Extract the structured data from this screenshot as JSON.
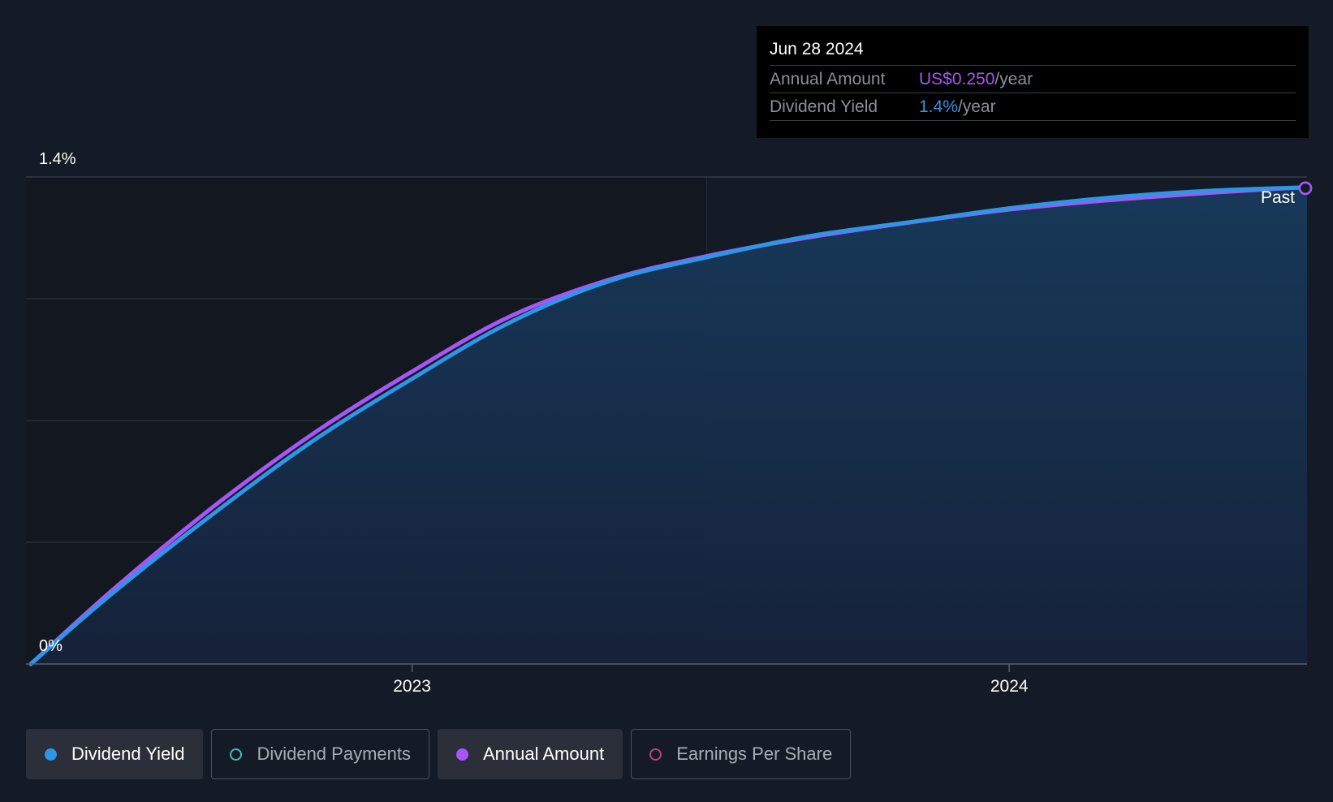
{
  "colors": {
    "background": "#151b26",
    "past_region": "#13171f",
    "area_fill_top": "#173a5c",
    "area_fill_bottom": "#15223a",
    "dividend_yield": "#2f95e6",
    "annual_amount": "#a855f7",
    "dividend_payments": "#3dbfb0",
    "earnings_per_share": "#c0417a",
    "gridline": "#2b313b",
    "axis_text": "#ffffff"
  },
  "tooltip": {
    "date": "Jun 28 2024",
    "annual_amount_label": "Annual Amount",
    "annual_amount_value": "US$0.250",
    "annual_amount_unit": "/year",
    "dividend_yield_label": "Dividend Yield",
    "dividend_yield_value": "1.4%",
    "dividend_yield_unit": "/year"
  },
  "past_label": "Past",
  "legend": {
    "items": [
      {
        "label": "Dividend Yield",
        "active": true,
        "dot_style": "filled",
        "color": "#2f95e6"
      },
      {
        "label": "Dividend Payments",
        "active": false,
        "dot_style": "outline",
        "color": "#3dbfb0"
      },
      {
        "label": "Annual Amount",
        "active": true,
        "dot_style": "filled",
        "color": "#a855f7"
      },
      {
        "label": "Earnings Per Share",
        "active": false,
        "dot_style": "outline",
        "color": "#c0417a"
      }
    ]
  },
  "chart_data": {
    "type": "area",
    "title": "",
    "xlabel": "",
    "ylabel": "",
    "x_tick_labels": [
      "2023",
      "2024"
    ],
    "y_tick_labels": [
      "0%",
      "1.4%"
    ],
    "ylim": [
      0,
      1.4
    ],
    "xlim": [
      "2022-05-10",
      "2024-07-01"
    ],
    "past_region_end": "2023-06-30",
    "grid": true,
    "series": [
      {
        "name": "Dividend Yield",
        "unit": "%",
        "points": [
          {
            "x": "2022-05-13",
            "y": 0.0
          },
          {
            "x": "2022-07-01",
            "y": 0.2
          },
          {
            "x": "2022-09-01",
            "y": 0.43
          },
          {
            "x": "2022-11-01",
            "y": 0.64
          },
          {
            "x": "2023-01-01",
            "y": 0.82
          },
          {
            "x": "2023-03-01",
            "y": 0.98
          },
          {
            "x": "2023-05-01",
            "y": 1.1
          },
          {
            "x": "2023-07-01",
            "y": 1.17
          },
          {
            "x": "2023-09-01",
            "y": 1.23
          },
          {
            "x": "2023-11-01",
            "y": 1.27
          },
          {
            "x": "2024-01-01",
            "y": 1.31
          },
          {
            "x": "2024-03-01",
            "y": 1.34
          },
          {
            "x": "2024-05-01",
            "y": 1.36
          },
          {
            "x": "2024-06-28",
            "y": 1.37
          }
        ]
      },
      {
        "name": "Annual Amount",
        "unit": "US$",
        "points": [
          {
            "x": "2022-05-13",
            "y": 0.0
          },
          {
            "x": "2022-07-01",
            "y": 0.037
          },
          {
            "x": "2022-09-01",
            "y": 0.08
          },
          {
            "x": "2022-11-01",
            "y": 0.118
          },
          {
            "x": "2023-01-01",
            "y": 0.151
          },
          {
            "x": "2023-03-01",
            "y": 0.18
          },
          {
            "x": "2023-05-01",
            "y": 0.2
          },
          {
            "x": "2023-07-01",
            "y": 0.213
          },
          {
            "x": "2023-09-01",
            "y": 0.223
          },
          {
            "x": "2023-11-01",
            "y": 0.231
          },
          {
            "x": "2024-01-01",
            "y": 0.238
          },
          {
            "x": "2024-03-01",
            "y": 0.243
          },
          {
            "x": "2024-05-01",
            "y": 0.247
          },
          {
            "x": "2024-06-28",
            "y": 0.25
          }
        ]
      }
    ]
  }
}
